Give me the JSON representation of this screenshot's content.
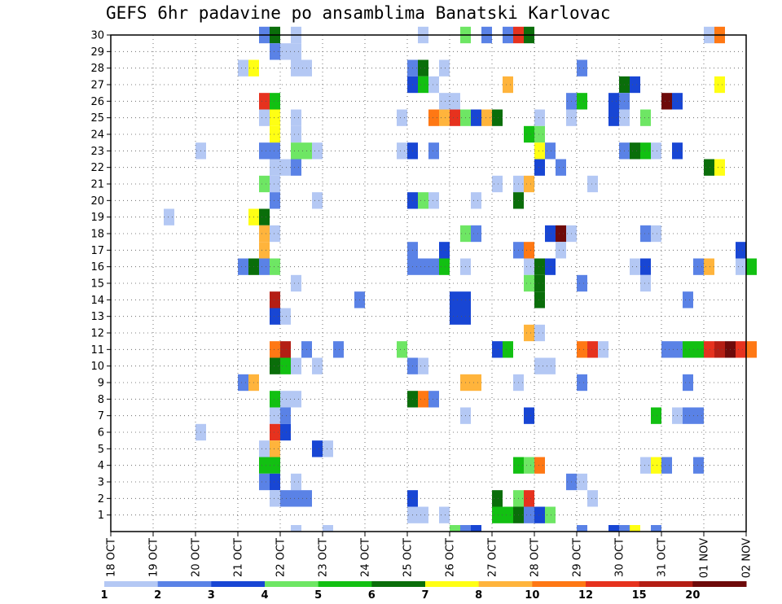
{
  "chart_data": {
    "type": "heatmap",
    "title": "GEFS 6hr padavine po ansamblima Banatski Karlovac",
    "xlabel": "",
    "ylabel": "",
    "x_tick_labels": [
      "18 OCT",
      "19 OCT",
      "20 OCT",
      "21 OCT",
      "22 OCT",
      "23 OCT",
      "24 OCT",
      "25 OCT",
      "26 OCT",
      "27 OCT",
      "28 OCT",
      "29 OCT",
      "30 OCT",
      "31 OCT",
      "01 NOV",
      "02 NOV"
    ],
    "y_tick_labels": [
      "1",
      "2",
      "3",
      "4",
      "5",
      "6",
      "7",
      "8",
      "9",
      "10",
      "11",
      "12",
      "13",
      "14",
      "15",
      "16",
      "17",
      "18",
      "19",
      "20",
      "21",
      "22",
      "23",
      "24",
      "25",
      "26",
      "27",
      "28",
      "29",
      "30"
    ],
    "grid": true,
    "levels": {
      "labels": [
        "1",
        "2",
        "3",
        "4",
        "5",
        "6",
        "7",
        "8",
        "10",
        "12",
        "15",
        "20"
      ],
      "colors": [
        "#b4c8f4",
        "#5a82e6",
        "#1846d4",
        "#6ee664",
        "#12c012",
        "#0a6e0a",
        "#ffff14",
        "#ffb43c",
        "#ff7814",
        "#e6321e",
        "#b41e14",
        "#6e0a0a"
      ]
    },
    "note_unit": "x = days since 18 OCT 00 UTC (6-hour steps), y = ensemble member, level = color class index",
    "cells": [
      [
        3.5,
        30,
        2
      ],
      [
        3.75,
        30,
        6
      ],
      [
        4.25,
        30,
        1
      ],
      [
        7.25,
        30,
        1
      ],
      [
        8.25,
        30,
        4
      ],
      [
        8.75,
        30,
        2
      ],
      [
        9.25,
        30,
        2
      ],
      [
        9.5,
        30,
        10
      ],
      [
        9.75,
        30,
        6
      ],
      [
        14.0,
        30,
        1
      ],
      [
        14.25,
        30,
        9
      ],
      [
        3.75,
        29,
        2
      ],
      [
        4.0,
        29,
        1
      ],
      [
        4.25,
        29,
        1
      ],
      [
        3.0,
        28,
        1
      ],
      [
        3.25,
        28,
        7
      ],
      [
        4.25,
        28,
        1
      ],
      [
        4.5,
        28,
        1
      ],
      [
        7.0,
        28,
        2
      ],
      [
        7.25,
        28,
        6
      ],
      [
        7.75,
        28,
        1
      ],
      [
        11.0,
        28,
        2
      ],
      [
        7.0,
        27,
        3
      ],
      [
        7.25,
        27,
        5
      ],
      [
        7.5,
        27,
        1
      ],
      [
        9.25,
        27,
        8
      ],
      [
        12.0,
        27,
        6
      ],
      [
        12.25,
        27,
        3
      ],
      [
        14.25,
        27,
        7
      ],
      [
        3.5,
        26,
        10
      ],
      [
        3.75,
        26,
        5
      ],
      [
        7.75,
        26,
        1
      ],
      [
        8.0,
        26,
        1
      ],
      [
        10.75,
        26,
        2
      ],
      [
        11.0,
        26,
        5
      ],
      [
        11.75,
        26,
        3
      ],
      [
        12.0,
        26,
        2
      ],
      [
        13.0,
        26,
        12
      ],
      [
        13.25,
        26,
        3
      ],
      [
        3.5,
        25,
        1
      ],
      [
        3.75,
        25,
        7
      ],
      [
        4.25,
        25,
        1
      ],
      [
        6.75,
        25,
        1
      ],
      [
        7.5,
        25,
        9
      ],
      [
        7.75,
        25,
        8
      ],
      [
        8.0,
        25,
        10
      ],
      [
        8.25,
        25,
        4
      ],
      [
        8.5,
        25,
        3
      ],
      [
        8.75,
        25,
        8
      ],
      [
        9.0,
        25,
        6
      ],
      [
        10.0,
        25,
        1
      ],
      [
        10.75,
        25,
        1
      ],
      [
        11.75,
        25,
        3
      ],
      [
        12.0,
        25,
        1
      ],
      [
        12.5,
        25,
        4
      ],
      [
        3.75,
        24,
        7
      ],
      [
        4.25,
        24,
        1
      ],
      [
        3.75,
        23,
        7
      ],
      [
        9.75,
        24,
        5
      ],
      [
        10.0,
        24,
        4
      ],
      [
        2.0,
        23,
        1
      ],
      [
        3.5,
        23,
        2
      ],
      [
        3.75,
        23,
        2
      ],
      [
        4.25,
        23,
        4
      ],
      [
        4.5,
        23,
        4
      ],
      [
        4.75,
        23,
        1
      ],
      [
        6.75,
        23,
        1
      ],
      [
        7.0,
        23,
        3
      ],
      [
        7.5,
        23,
        2
      ],
      [
        10.0,
        23,
        7
      ],
      [
        10.25,
        23,
        2
      ],
      [
        12.0,
        23,
        2
      ],
      [
        12.25,
        23,
        6
      ],
      [
        12.5,
        23,
        5
      ],
      [
        12.75,
        23,
        1
      ],
      [
        13.25,
        23,
        3
      ],
      [
        3.75,
        22,
        1
      ],
      [
        4.0,
        22,
        1
      ],
      [
        4.25,
        22,
        2
      ],
      [
        10.0,
        22,
        3
      ],
      [
        10.5,
        22,
        2
      ],
      [
        14.0,
        22,
        6
      ],
      [
        14.25,
        22,
        7
      ],
      [
        3.5,
        21,
        4
      ],
      [
        3.75,
        21,
        1
      ],
      [
        9.0,
        21,
        1
      ],
      [
        9.5,
        21,
        1
      ],
      [
        9.75,
        21,
        8
      ],
      [
        11.25,
        21,
        1
      ],
      [
        3.75,
        20,
        2
      ],
      [
        4.75,
        20,
        1
      ],
      [
        7.0,
        20,
        3
      ],
      [
        7.25,
        20,
        4
      ],
      [
        7.5,
        20,
        1
      ],
      [
        8.5,
        20,
        1
      ],
      [
        9.5,
        20,
        6
      ],
      [
        1.25,
        19,
        1
      ],
      [
        3.25,
        19,
        7
      ],
      [
        3.5,
        19,
        6
      ],
      [
        8.25,
        18,
        4
      ],
      [
        3.5,
        18,
        8
      ],
      [
        3.75,
        18,
        1
      ],
      [
        8.5,
        18,
        2
      ],
      [
        10.25,
        18,
        3
      ],
      [
        10.5,
        18,
        12
      ],
      [
        10.75,
        18,
        1
      ],
      [
        12.5,
        18,
        2
      ],
      [
        12.75,
        18,
        1
      ],
      [
        3.5,
        17,
        8
      ],
      [
        10.5,
        17,
        1
      ],
      [
        7.0,
        17,
        2
      ],
      [
        7.75,
        17,
        3
      ],
      [
        9.5,
        17,
        2
      ],
      [
        9.75,
        17,
        9
      ],
      [
        14.75,
        17,
        3
      ],
      [
        7.0,
        16,
        2
      ],
      [
        7.25,
        16,
        2
      ],
      [
        7.5,
        16,
        2
      ],
      [
        7.75,
        16,
        5
      ],
      [
        9.75,
        16,
        1
      ],
      [
        10.0,
        16,
        6
      ],
      [
        10.25,
        16,
        3
      ],
      [
        12.25,
        16,
        1
      ],
      [
        12.5,
        16,
        3
      ],
      [
        13.75,
        16,
        2
      ],
      [
        14.0,
        16,
        8
      ],
      [
        15.0,
        16,
        5
      ],
      [
        3.0,
        16,
        2
      ],
      [
        3.25,
        16,
        6
      ],
      [
        3.5,
        16,
        2
      ],
      [
        3.75,
        16,
        4
      ],
      [
        8.25,
        16,
        1
      ],
      [
        14.75,
        16,
        1
      ],
      [
        12.5,
        15,
        1
      ],
      [
        10.0,
        15,
        6
      ],
      [
        9.75,
        15,
        4
      ],
      [
        10.0,
        14,
        6
      ],
      [
        11.0,
        15,
        2
      ],
      [
        4.25,
        15,
        1
      ],
      [
        3.75,
        14,
        11
      ],
      [
        5.75,
        14,
        2
      ],
      [
        8.0,
        14,
        3
      ],
      [
        8.25,
        14,
        3
      ],
      [
        13.5,
        14,
        2
      ],
      [
        3.75,
        13,
        3
      ],
      [
        4.0,
        13,
        1
      ],
      [
        8.0,
        13,
        3
      ],
      [
        8.25,
        13,
        3
      ],
      [
        9.75,
        12,
        8
      ],
      [
        10.0,
        12,
        1
      ],
      [
        3.75,
        11,
        9
      ],
      [
        4.0,
        11,
        11
      ],
      [
        4.5,
        11,
        2
      ],
      [
        5.25,
        11,
        2
      ],
      [
        6.75,
        11,
        4
      ],
      [
        9.0,
        11,
        3
      ],
      [
        9.25,
        11,
        5
      ],
      [
        11.0,
        11,
        9
      ],
      [
        11.25,
        11,
        10
      ],
      [
        11.5,
        11,
        1
      ],
      [
        13.0,
        11,
        2
      ],
      [
        13.25,
        11,
        2
      ],
      [
        13.5,
        11,
        5
      ],
      [
        13.75,
        11,
        5
      ],
      [
        14.0,
        11,
        10
      ],
      [
        14.25,
        11,
        11
      ],
      [
        14.5,
        11,
        12
      ],
      [
        14.75,
        11,
        10
      ],
      [
        15.0,
        11,
        9
      ],
      [
        3.75,
        10,
        6
      ],
      [
        4.0,
        10,
        5
      ],
      [
        4.25,
        10,
        1
      ],
      [
        4.75,
        10,
        1
      ],
      [
        7.0,
        10,
        2
      ],
      [
        7.25,
        10,
        1
      ],
      [
        10.0,
        10,
        1
      ],
      [
        10.25,
        10,
        1
      ],
      [
        3.0,
        9,
        2
      ],
      [
        3.25,
        9,
        8
      ],
      [
        8.25,
        9,
        8
      ],
      [
        8.5,
        9,
        8
      ],
      [
        9.5,
        9,
        1
      ],
      [
        11.0,
        9,
        2
      ],
      [
        13.5,
        9,
        2
      ],
      [
        3.75,
        8,
        5
      ],
      [
        4.0,
        8,
        1
      ],
      [
        4.25,
        8,
        1
      ],
      [
        7.0,
        8,
        6
      ],
      [
        7.25,
        8,
        9
      ],
      [
        7.5,
        8,
        2
      ],
      [
        3.75,
        7,
        1
      ],
      [
        4.0,
        7,
        2
      ],
      [
        8.25,
        7,
        1
      ],
      [
        9.75,
        7,
        3
      ],
      [
        12.75,
        7,
        5
      ],
      [
        13.25,
        7,
        1
      ],
      [
        13.5,
        7,
        2
      ],
      [
        13.75,
        7,
        2
      ],
      [
        2.0,
        6,
        1
      ],
      [
        3.75,
        6,
        10
      ],
      [
        4.0,
        6,
        3
      ],
      [
        3.5,
        5,
        1
      ],
      [
        3.75,
        5,
        8
      ],
      [
        4.75,
        5,
        3
      ],
      [
        5.0,
        5,
        1
      ],
      [
        3.5,
        4,
        5
      ],
      [
        3.75,
        4,
        5
      ],
      [
        9.5,
        4,
        5
      ],
      [
        9.75,
        4,
        4
      ],
      [
        10.0,
        4,
        9
      ],
      [
        12.5,
        4,
        1
      ],
      [
        12.75,
        4,
        7
      ],
      [
        13.0,
        4,
        2
      ],
      [
        13.75,
        4,
        2
      ],
      [
        3.5,
        3,
        2
      ],
      [
        3.75,
        3,
        3
      ],
      [
        4.25,
        3,
        1
      ],
      [
        10.75,
        3,
        2
      ],
      [
        11.0,
        3,
        1
      ],
      [
        3.75,
        2,
        1
      ],
      [
        4.0,
        2,
        2
      ],
      [
        4.25,
        2,
        2
      ],
      [
        4.5,
        2,
        2
      ],
      [
        7.0,
        2,
        3
      ],
      [
        9.0,
        2,
        6
      ],
      [
        9.5,
        2,
        4
      ],
      [
        9.75,
        2,
        10
      ],
      [
        11.25,
        2,
        1
      ],
      [
        7.0,
        1,
        1
      ],
      [
        7.25,
        1,
        1
      ],
      [
        7.75,
        1,
        1
      ],
      [
        9.0,
        1,
        5
      ],
      [
        9.25,
        1,
        5
      ],
      [
        9.5,
        1,
        6
      ],
      [
        9.75,
        1,
        2
      ],
      [
        10.0,
        1,
        3
      ],
      [
        10.25,
        1,
        4
      ],
      [
        4.25,
        0,
        1
      ],
      [
        5.0,
        0,
        1
      ],
      [
        8.0,
        0,
        4
      ],
      [
        8.25,
        0,
        2
      ],
      [
        8.5,
        0,
        3
      ],
      [
        11.0,
        0,
        2
      ],
      [
        11.75,
        0,
        3
      ],
      [
        12.0,
        0,
        2
      ],
      [
        12.25,
        0,
        7
      ],
      [
        12.75,
        0,
        2
      ]
    ]
  }
}
